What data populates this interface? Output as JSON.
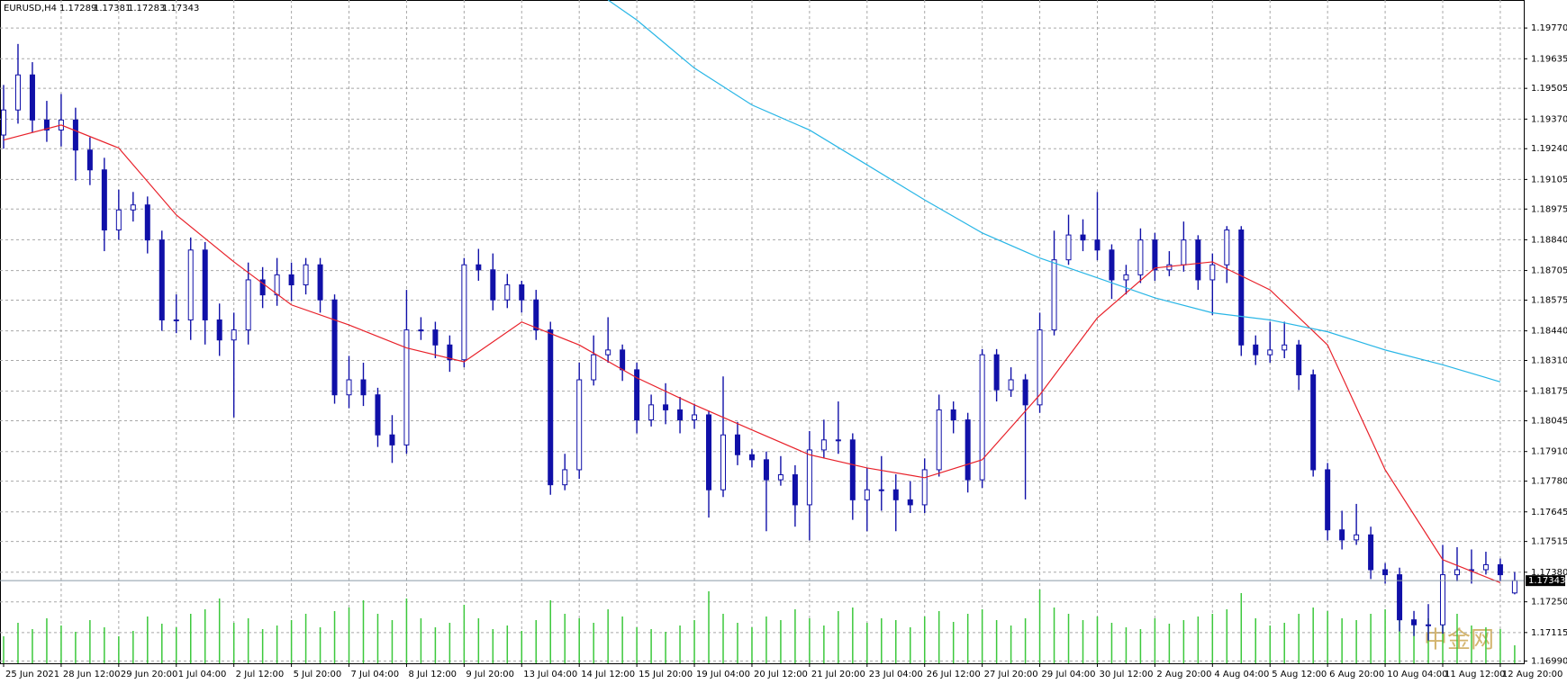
{
  "chart_data": {
    "type": "candlestick",
    "symbol": "EURUSD,H4",
    "categories": [
      "25 Jun 2021",
      null,
      null,
      null,
      "28 Jun 12:00",
      null,
      null,
      null,
      "29 Jun 20:00",
      null,
      null,
      null,
      "1 Jul 04:00",
      null,
      null,
      null,
      "2 Jul 12:00",
      null,
      null,
      null,
      "5 Jul 20:00",
      null,
      null,
      null,
      "7 Jul 04:00",
      null,
      null,
      null,
      "8 Jul 12:00",
      null,
      null,
      null,
      "9 Jul 20:00",
      null,
      null,
      null,
      "13 Jul 04:00",
      null,
      null,
      null,
      "14 Jul 12:00",
      null,
      null,
      null,
      "15 Jul 20:00",
      null,
      null,
      null,
      "19 Jul 04:00",
      null,
      null,
      null,
      "20 Jul 12:00",
      null,
      null,
      null,
      "21 Jul 20:00",
      null,
      null,
      null,
      "23 Jul 04:00",
      null,
      null,
      null,
      "26 Jul 12:00",
      null,
      null,
      null,
      "27 Jul 20:00",
      null,
      null,
      null,
      "29 Jul 04:00",
      null,
      null,
      null,
      "30 Jul 12:00",
      null,
      null,
      null,
      "2 Aug 20:00",
      null,
      null,
      null,
      "4 Aug 04:00",
      null,
      null,
      null,
      "5 Aug 12:00",
      null,
      null,
      null,
      "6 Aug 20:00",
      null,
      null,
      null,
      "10 Aug 04:00",
      null,
      null,
      null,
      "11 Aug 12:00",
      null,
      null,
      null,
      "12 Aug 20:00",
      null
    ],
    "open": [
      1.193,
      1.1941,
      1.19564,
      1.19366,
      1.19322,
      1.19366,
      1.19234,
      1.19147,
      1.18883,
      1.18971,
      1.18993,
      1.18839,
      1.18488,
      1.18488,
      1.18795,
      1.18488,
      1.184,
      1.18444,
      1.18664,
      1.18598,
      1.18686,
      1.18642,
      1.1873,
      1.18576,
      1.18159,
      1.18225,
      1.18159,
      1.17983,
      1.17939,
      1.18444,
      1.18444,
      1.18378,
      1.18313,
      1.1873,
      1.18708,
      1.18576,
      1.18642,
      1.18576,
      1.18444,
      1.17764,
      1.1783,
      1.18225,
      1.18335,
      1.18356,
      1.18269,
      1.18049,
      1.18115,
      1.18093,
      1.18049,
      1.18071,
      1.17742,
      1.17983,
      1.17896,
      1.17874,
      1.17786,
      1.17808,
      1.17676,
      1.17917,
      1.17961,
      1.17961,
      1.17698,
      1.17742,
      1.17742,
      1.17698,
      1.17676,
      1.1783,
      1.18093,
      1.18049,
      1.17786,
      1.18335,
      1.18181,
      1.18225,
      1.18115,
      1.18444,
      1.18752,
      1.18861,
      1.18839,
      1.18795,
      1.18664,
      1.18686,
      1.18839,
      1.18708,
      1.1873,
      1.18839,
      1.18664,
      1.1873,
      1.18883,
      1.18378,
      1.18335,
      1.18356,
      1.18378,
      1.18247,
      1.1783,
      1.17566,
      1.17522,
      1.17544,
      1.17391,
      1.17369,
      1.17171,
      1.17149,
      1.17149,
      1.17369,
      1.17391,
      1.17391,
      1.17413,
      1.17289
    ],
    "high": [
      1.1952,
      1.197,
      1.1962,
      1.1945,
      1.1948,
      1.1942,
      1.1929,
      1.192,
      1.1906,
      1.1905,
      1.1903,
      1.1888,
      1.186,
      1.1885,
      1.1883,
      1.1856,
      1.1852,
      1.1874,
      1.1872,
      1.1876,
      1.1874,
      1.1876,
      1.1876,
      1.186,
      1.1833,
      1.183,
      1.1819,
      1.1807,
      1.1862,
      1.185,
      1.1848,
      1.1842,
      1.1876,
      1.188,
      1.1878,
      1.1869,
      1.1866,
      1.1862,
      1.1848,
      1.179,
      1.183,
      1.1842,
      1.185,
      1.1838,
      1.183,
      1.1816,
      1.1821,
      1.1815,
      1.1812,
      1.1809,
      1.1824,
      1.1804,
      1.1792,
      1.1791,
      1.1789,
      1.1785,
      1.18,
      1.1805,
      1.1813,
      1.1799,
      1.1784,
      1.1789,
      1.1781,
      1.1778,
      1.1788,
      1.1816,
      1.1813,
      1.1808,
      1.1836,
      1.1836,
      1.1828,
      1.1825,
      1.1852,
      1.1888,
      1.1895,
      1.1893,
      1.1905,
      1.1882,
      1.1873,
      1.1889,
      1.1887,
      1.1879,
      1.1892,
      1.1886,
      1.1878,
      1.189,
      1.189,
      1.1842,
      1.1848,
      1.1848,
      1.184,
      1.1827,
      1.1786,
      1.1765,
      1.1768,
      1.1758,
      1.1742,
      1.174,
      1.1721,
      1.1724,
      1.175,
      1.1749,
      1.1748,
      1.1747,
      1.1744,
      1.17381
    ],
    "low": [
      1.1924,
      1.1935,
      1.1931,
      1.1927,
      1.1925,
      1.191,
      1.1908,
      1.1879,
      1.1884,
      1.1892,
      1.1878,
      1.1844,
      1.1843,
      1.184,
      1.1838,
      1.1833,
      1.1806,
      1.1838,
      1.1854,
      1.1855,
      1.1857,
      1.186,
      1.1852,
      1.1812,
      1.181,
      1.1811,
      1.1793,
      1.1786,
      1.179,
      1.184,
      1.1832,
      1.1826,
      1.1828,
      1.1866,
      1.1853,
      1.1854,
      1.1852,
      1.184,
      1.1772,
      1.1774,
      1.1779,
      1.182,
      1.183,
      1.1822,
      1.1799,
      1.1802,
      1.1803,
      1.1799,
      1.1801,
      1.1762,
      1.1771,
      1.1785,
      1.1784,
      1.1756,
      1.1776,
      1.1758,
      1.1752,
      1.1788,
      1.179,
      1.1761,
      1.1756,
      1.1765,
      1.1756,
      1.1764,
      1.1764,
      1.178,
      1.1799,
      1.1773,
      1.1775,
      1.1813,
      1.1815,
      1.177,
      1.1808,
      1.1842,
      1.1873,
      1.1879,
      1.1875,
      1.1858,
      1.186,
      1.1865,
      1.1866,
      1.1868,
      1.187,
      1.1862,
      1.1851,
      1.1865,
      1.1833,
      1.1829,
      1.183,
      1.1832,
      1.1818,
      1.178,
      1.1752,
      1.1748,
      1.175,
      1.1735,
      1.1733,
      1.1712,
      1.171,
      1.1708,
      1.1711,
      1.1734,
      1.1733,
      1.1737,
      1.1734,
      1.17283
    ],
    "close": [
      1.1941,
      1.19564,
      1.19366,
      1.19322,
      1.19366,
      1.19234,
      1.19147,
      1.18883,
      1.18971,
      1.18993,
      1.18839,
      1.18488,
      1.18488,
      1.18795,
      1.18488,
      1.184,
      1.18444,
      1.18664,
      1.18598,
      1.18686,
      1.18642,
      1.1873,
      1.18576,
      1.18159,
      1.18225,
      1.18159,
      1.17983,
      1.17939,
      1.18444,
      1.18444,
      1.18378,
      1.18313,
      1.1873,
      1.18708,
      1.18576,
      1.18642,
      1.18576,
      1.18444,
      1.17764,
      1.1783,
      1.18225,
      1.18335,
      1.18356,
      1.18269,
      1.18049,
      1.18115,
      1.18093,
      1.18049,
      1.18071,
      1.17742,
      1.17983,
      1.17896,
      1.17874,
      1.17786,
      1.17808,
      1.17676,
      1.17917,
      1.17961,
      1.17961,
      1.17698,
      1.17742,
      1.17742,
      1.17698,
      1.17676,
      1.1783,
      1.18093,
      1.18049,
      1.17786,
      1.18335,
      1.18181,
      1.18225,
      1.18115,
      1.18444,
      1.18752,
      1.18861,
      1.18839,
      1.18795,
      1.18664,
      1.18686,
      1.18839,
      1.18708,
      1.1873,
      1.18839,
      1.18664,
      1.1873,
      1.18883,
      1.18378,
      1.18335,
      1.18356,
      1.18378,
      1.18247,
      1.1783,
      1.17566,
      1.17522,
      1.17544,
      1.17391,
      1.17369,
      1.17171,
      1.17149,
      1.17149,
      1.17369,
      1.17391,
      1.17391,
      1.17413,
      1.17369,
      1.17343
    ],
    "up_color": "#ffffff",
    "down_color": "#1010a8",
    "ylim": [
      1.1698,
      1.19893
    ],
    "yticks": [
      {
        "value": 1.1977,
        "label": "1.19770"
      },
      1.19635,
      1.19505,
      {
        "value": 1.1937,
        "label": "1.19370"
      },
      {
        "value": 1.1924,
        "label": "1.19240"
      },
      1.19105,
      1.18975,
      {
        "value": 1.1884,
        "label": "1.18840"
      },
      1.18705,
      1.18575,
      {
        "value": 1.1844,
        "label": "1.18440"
      },
      {
        "value": 1.1831,
        "label": "1.18310"
      },
      1.18175,
      1.18045,
      {
        "value": 1.1791,
        "label": "1.17910"
      },
      {
        "value": 1.1778,
        "label": "1.17780"
      },
      1.17645,
      1.17515,
      {
        "value": 1.1738,
        "label": "1.17380"
      },
      {
        "value": 1.1725,
        "label": "1.17250"
      },
      1.17115,
      {
        "value": 1.1699,
        "label": "1.16990"
      }
    ],
    "grid": true,
    "current_price": 1.17343,
    "ma_lines": [
      {
        "color": "#e8212a",
        "x": [
          0,
          4,
          8,
          12,
          16,
          20,
          24,
          28,
          32,
          36,
          40,
          44,
          48,
          52,
          56,
          60,
          64,
          68,
          72,
          76,
          80,
          84,
          88,
          92,
          96,
          100,
          104
        ],
        "values": [
          1.19278,
          1.19344,
          1.19243,
          1.18949,
          1.18743,
          1.18554,
          1.18466,
          1.18365,
          1.18304,
          1.18479,
          1.18378,
          1.18234,
          1.18115,
          1.18005,
          1.17896,
          1.17838,
          1.17795,
          1.17874,
          1.18159,
          1.18497,
          1.18716,
          1.18743,
          1.1862,
          1.18378,
          1.1783,
          1.17435,
          1.17334
        ]
      },
      {
        "color": "#29b6e6",
        "x": [
          42,
          44,
          48,
          52,
          56,
          60,
          64,
          68,
          72,
          76,
          80,
          84,
          88,
          92,
          96,
          100,
          104
        ],
        "values": [
          1.19893,
          1.19805,
          1.19594,
          1.19432,
          1.19322,
          1.19169,
          1.19015,
          1.1887,
          1.1876,
          1.18673,
          1.18585,
          1.18519,
          1.18488,
          1.18436,
          1.18356,
          1.18291,
          1.18216
        ]
      }
    ],
    "volume": {
      "color": "#3cc83c",
      "ylim": [
        0,
        100
      ],
      "values": [
        30,
        45,
        38,
        50,
        42,
        35,
        48,
        40,
        30,
        36,
        52,
        44,
        40,
        55,
        60,
        72,
        45,
        50,
        38,
        42,
        48,
        55,
        40,
        58,
        62,
        70,
        55,
        48,
        72,
        50,
        40,
        45,
        65,
        50,
        38,
        42,
        36,
        48,
        70,
        55,
        50,
        45,
        60,
        52,
        40,
        38,
        35,
        42,
        48,
        80,
        55,
        45,
        40,
        52,
        48,
        60,
        50,
        42,
        58,
        62,
        45,
        50,
        48,
        40,
        52,
        58,
        46,
        55,
        60,
        48,
        42,
        50,
        82,
        62,
        55,
        48,
        52,
        45,
        40,
        38,
        50,
        44,
        48,
        52,
        55,
        60,
        78,
        50,
        42,
        45,
        55,
        62,
        58,
        50,
        48,
        55,
        60,
        62,
        45,
        50,
        68,
        55,
        42,
        40,
        38,
        20
      ]
    },
    "watermark": "中金网"
  }
}
